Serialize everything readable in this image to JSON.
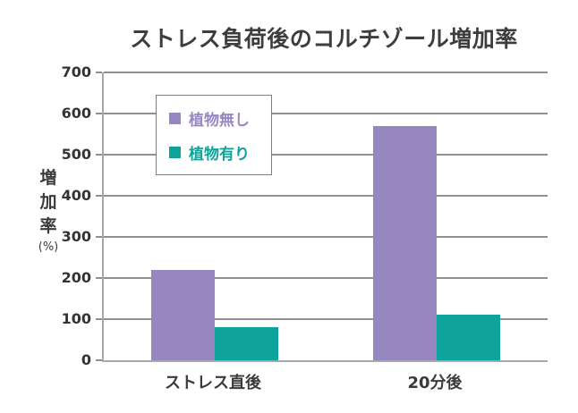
{
  "chart_data": {
    "type": "bar",
    "title": "ストレス負荷後のコルチゾール増加率",
    "categories": [
      "ストレス直後",
      "20分後"
    ],
    "series": [
      {
        "name": "植物無し",
        "color": "#9687C1",
        "values": [
          220,
          570
        ]
      },
      {
        "name": "植物有り",
        "color": "#0DA29A",
        "values": [
          80,
          110
        ]
      }
    ],
    "ylabel": "増加率",
    "ylabel_unit": "(%)",
    "ylim": [
      0,
      700
    ],
    "yticks": [
      0,
      100,
      200,
      300,
      400,
      500,
      600,
      700
    ],
    "grid": true,
    "legend_position": "upper-left-inside"
  },
  "colors": {
    "background": "#FFFFFF",
    "title_text": "#3D3D3D",
    "axis_text": "#333333",
    "gridline": "#8F8F8F",
    "axis_line": "#A8A8A8",
    "legend_border": "#7F7F7F"
  }
}
